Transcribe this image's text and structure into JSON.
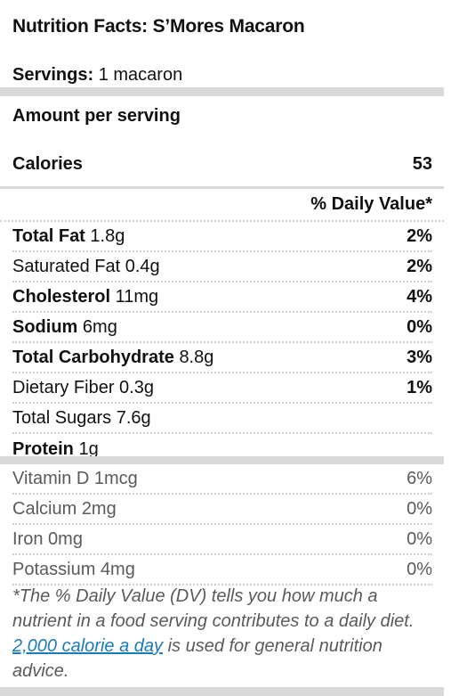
{
  "title": "Nutrition Facts: S’Mores Macaron",
  "servings": {
    "label": "Servings:",
    "value": "1 macaron"
  },
  "amount_per_serving": "Amount per serving",
  "calories": {
    "label": "Calories",
    "value": "53"
  },
  "daily_value_header": "% Daily Value*",
  "nutrients": [
    {
      "name": "Total Fat",
      "amount": "1.8g",
      "dv": "2%",
      "bold": true
    },
    {
      "name": "Saturated Fat",
      "amount": "0.4g",
      "dv": "2%",
      "bold": false
    },
    {
      "name": "Cholesterol",
      "amount": "11mg",
      "dv": "4%",
      "bold": true
    },
    {
      "name": "Sodium",
      "amount": "6mg",
      "dv": "0%",
      "bold": true
    },
    {
      "name": "Total Carbohydrate",
      "amount": "8.8g",
      "dv": "3%",
      "bold": true
    },
    {
      "name": "Dietary Fiber",
      "amount": "0.3g",
      "dv": "1%",
      "bold": false
    },
    {
      "name": "Total Sugars",
      "amount": "7.6g",
      "dv": "",
      "bold": false
    },
    {
      "name": "Protein",
      "amount": "1g",
      "dv": "",
      "bold": true
    }
  ],
  "vitamins": [
    {
      "name": "Vitamin D",
      "amount": "1mcg",
      "dv": "6%"
    },
    {
      "name": "Calcium",
      "amount": "2mg",
      "dv": "0%"
    },
    {
      "name": "Iron",
      "amount": "0mg",
      "dv": "0%"
    },
    {
      "name": "Potassium",
      "amount": "4mg",
      "dv": "0%"
    }
  ],
  "footnote": {
    "before": "*The % Daily Value (DV) tells you how much a nutrient in a food serving contributes to a daily diet. ",
    "link": "2,000 calorie a day",
    "after": " is used for general nutrition advice."
  }
}
